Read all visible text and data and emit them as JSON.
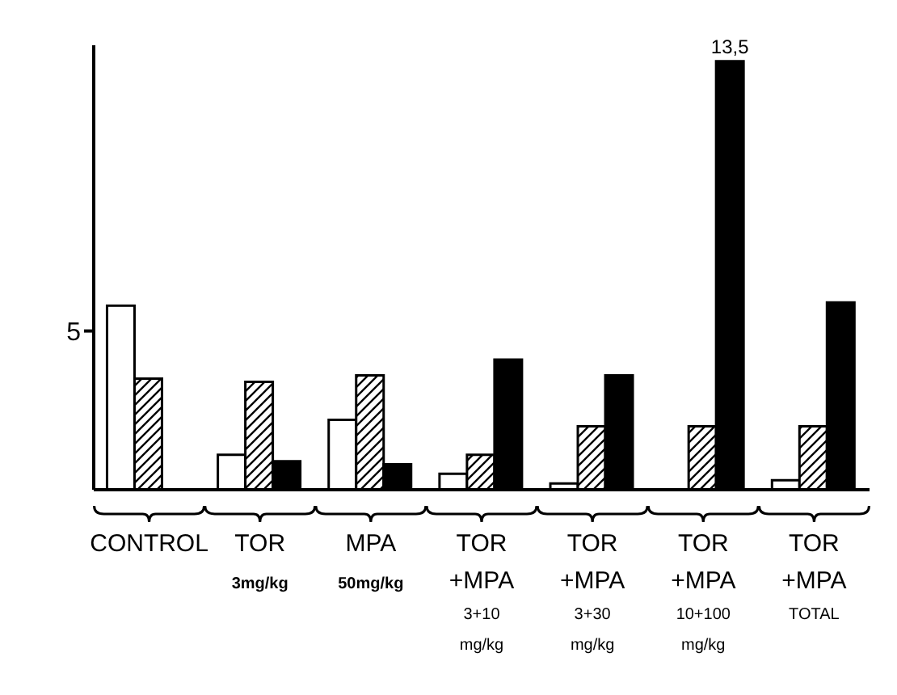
{
  "chart_data": {
    "type": "bar",
    "categories": [
      "CONTROL",
      "TOR\n3mg/kg",
      "MPA\n50mg/kg",
      "TOR\n+MPA\n3+10\nmg/kg",
      "TOR\n+MPA\n3+30\nmg/kg",
      "TOR\n+MPA\n10+100\nmg/kg",
      "TOR\n+MPA\nTOTAL"
    ],
    "series": [
      {
        "color": "#ffffff",
        "values": [
          5.8,
          1.1,
          2.2,
          0.5,
          0.2,
          0,
          0.3
        ]
      },
      {
        "color": "#000000",
        "values": [
          3.5,
          3.4,
          3.6,
          1.1,
          2.0,
          2.0,
          2.0
        ]
      },
      {
        "color": "#000000",
        "values": [
          null,
          0.9,
          0.8,
          4.1,
          3.6,
          13.5,
          5.9
        ],
        "value_labels": [
          null,
          null,
          null,
          null,
          null,
          "13,5",
          null
        ]
      }
    ],
    "ylim": [
      0,
      14
    ],
    "yticks": [
      5
    ],
    "grid": false,
    "legend": false
  }
}
